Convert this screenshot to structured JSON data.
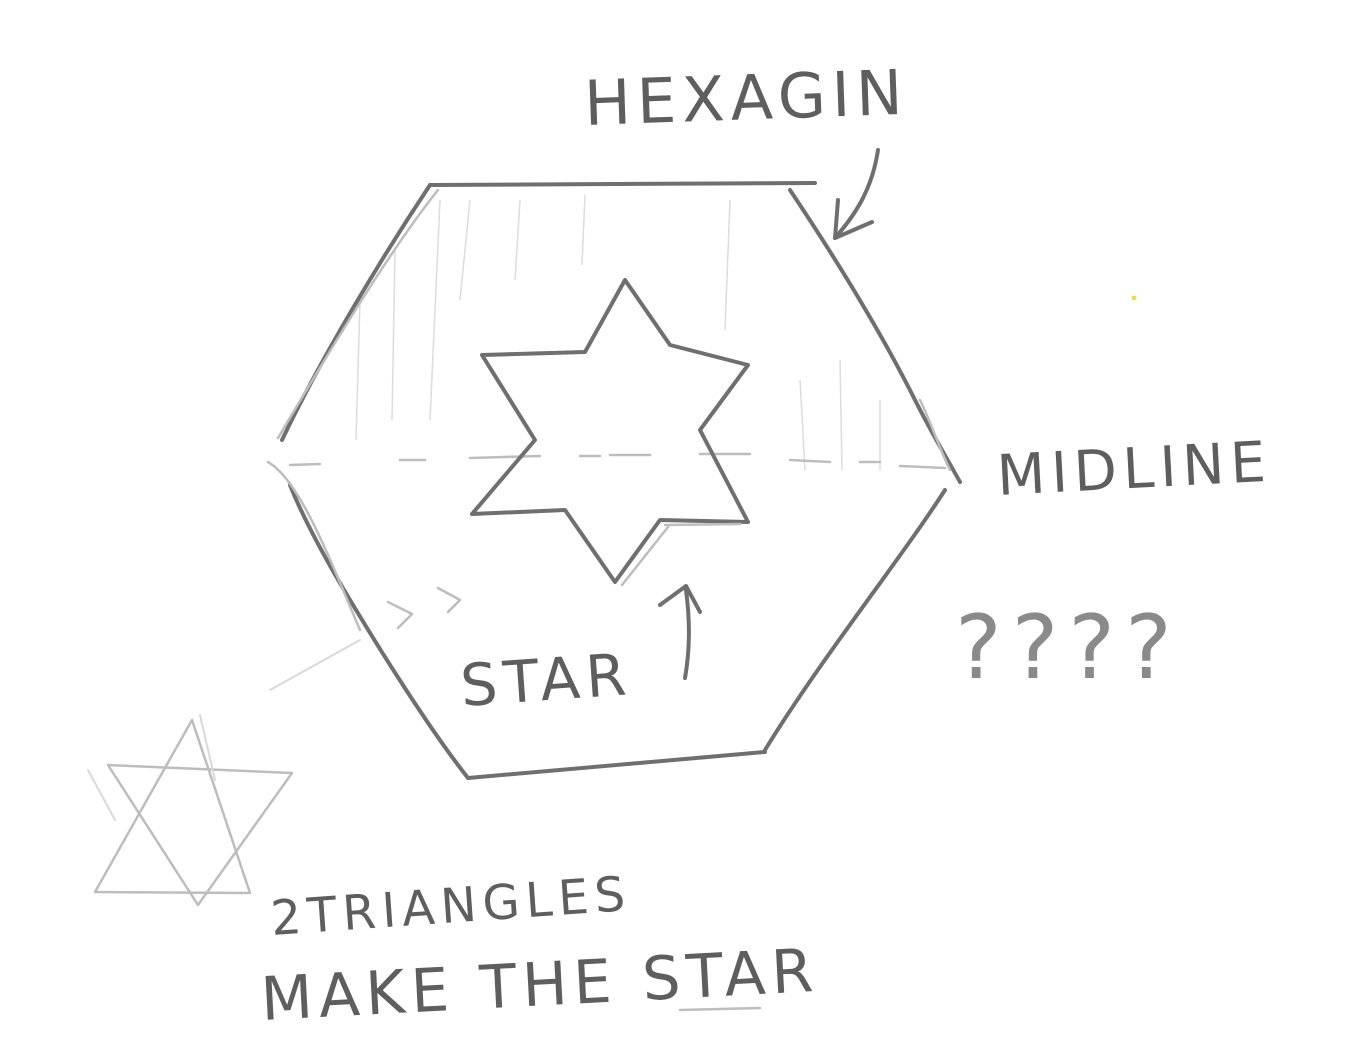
{
  "labels": {
    "hexagon": "HEXAGIN",
    "midline": "MIDLINE",
    "question": "????",
    "star": "STAR",
    "triangles_line1": "2TRIANGLES",
    "triangles_line2": "MAKE THE STAR"
  },
  "colors": {
    "pencil": "#6f6f6f",
    "paper": "#ffffff"
  }
}
